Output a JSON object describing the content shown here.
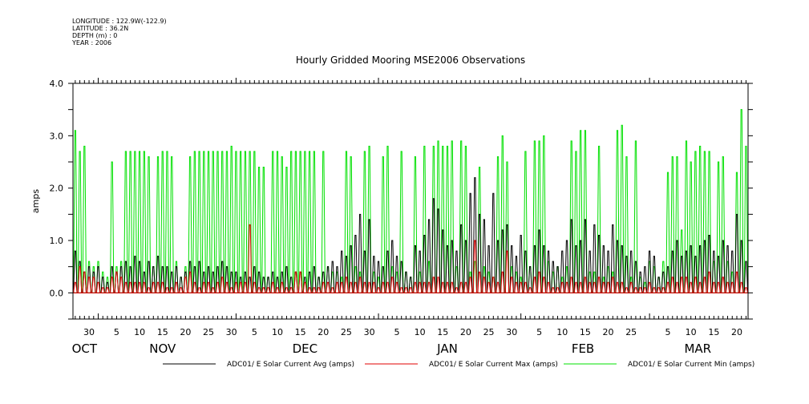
{
  "header": {
    "longitude": "LONGITUDE : 122.9W(-122.9)",
    "latitude": "LATITUDE : 36.2N",
    "depth": "DEPTH (m) : 0",
    "year": "YEAR : 2006"
  },
  "chart_data": {
    "type": "line",
    "title": "Hourly Gridded Mooring MSE2006 Observations",
    "ylabel": "amps",
    "xlabel": "",
    "ylim": [
      -0.5,
      4.0
    ],
    "y_ticks": [
      "0.0",
      "1.0",
      "2.0",
      "3.0",
      "4.0"
    ],
    "x_start": "Oct 27",
    "x_days": 147,
    "x_tick_labels": [
      {
        "label": "30",
        "day": 3
      },
      {
        "label": "5",
        "day": 9
      },
      {
        "label": "10",
        "day": 14
      },
      {
        "label": "15",
        "day": 19
      },
      {
        "label": "20",
        "day": 24
      },
      {
        "label": "25",
        "day": 29
      },
      {
        "label": "30",
        "day": 34
      },
      {
        "label": "5",
        "day": 39
      },
      {
        "label": "10",
        "day": 44
      },
      {
        "label": "15",
        "day": 49
      },
      {
        "label": "20",
        "day": 54
      },
      {
        "label": "25",
        "day": 59
      },
      {
        "label": "30",
        "day": 64
      },
      {
        "label": "5",
        "day": 70
      },
      {
        "label": "10",
        "day": 75
      },
      {
        "label": "15",
        "day": 80
      },
      {
        "label": "20",
        "day": 85
      },
      {
        "label": "25",
        "day": 90
      },
      {
        "label": "30",
        "day": 95
      },
      {
        "label": "5",
        "day": 101
      },
      {
        "label": "10",
        "day": 106
      },
      {
        "label": "15",
        "day": 111
      },
      {
        "label": "20",
        "day": 116
      },
      {
        "label": "25",
        "day": 121
      },
      {
        "label": "5",
        "day": 129
      },
      {
        "label": "10",
        "day": 134
      },
      {
        "label": "15",
        "day": 139
      },
      {
        "label": "20",
        "day": 144
      }
    ],
    "month_labels": [
      {
        "label": "OCT",
        "day": 2
      },
      {
        "label": "NOV",
        "day": 19
      },
      {
        "label": "DEC",
        "day": 50
      },
      {
        "label": "JAN",
        "day": 81
      },
      {
        "label": "FEB",
        "day": 110.5
      },
      {
        "label": "MAR",
        "day": 135.5
      }
    ],
    "month_starts": [
      5,
      35,
      66,
      97,
      125
    ],
    "series": [
      {
        "name": "ADC01/ E Solar Current Min (amps)",
        "color": "#00e000",
        "legend_color": "#00e000",
        "values": [
          3.1,
          2.7,
          2.8,
          0.6,
          0.5,
          0.6,
          0.4,
          0.3,
          2.5,
          0.5,
          0.6,
          2.7,
          2.7,
          2.7,
          2.7,
          2.7,
          2.6,
          0.5,
          2.6,
          2.7,
          2.7,
          2.6,
          0.6,
          0.3,
          0.5,
          2.6,
          2.7,
          2.7,
          2.7,
          2.7,
          2.7,
          2.7,
          2.7,
          2.7,
          2.8,
          2.7,
          2.7,
          2.7,
          2.7,
          2.7,
          2.4,
          2.4,
          0.3,
          2.7,
          2.7,
          2.6,
          2.4,
          2.7,
          2.7,
          2.7,
          2.7,
          2.7,
          2.7,
          0.3,
          2.7,
          0.5,
          0.4,
          0.4,
          0.3,
          2.7,
          2.6,
          0.5,
          0.4,
          2.7,
          2.8,
          0.4,
          0.3,
          2.6,
          2.8,
          0.5,
          0.4,
          2.7,
          0.4,
          0.3,
          2.6,
          0.4,
          2.8,
          0.6,
          2.8,
          2.9,
          2.8,
          2.8,
          2.9,
          0.5,
          2.9,
          2.8,
          0.4,
          0.6,
          2.4,
          0.5,
          0.4,
          0.3,
          2.6,
          3.0,
          2.5,
          0.5,
          0.4,
          0.3,
          2.7,
          0.5,
          2.9,
          2.9,
          3.0,
          0.6,
          0.4,
          0.5,
          0.3,
          0.5,
          2.9,
          2.7,
          3.1,
          3.1,
          0.4,
          0.4,
          2.8,
          0.3,
          0.5,
          0.4,
          3.1,
          3.2,
          2.6,
          0.3,
          2.9,
          0.3,
          0.2,
          0.6,
          0.5,
          0.3,
          0.6,
          2.3,
          2.6,
          2.6,
          1.2,
          2.9,
          2.5,
          2.7,
          2.8,
          2.7,
          2.7,
          0.6,
          2.5,
          2.6,
          0.6,
          0.4,
          2.3,
          3.5,
          2.8
        ]
      },
      {
        "name": "ADC01/ E Solar Current Avg (amps)",
        "color": "#000000",
        "legend_color": "#000000",
        "values": [
          0.8,
          0.6,
          0.4,
          0.5,
          0.4,
          0.5,
          0.3,
          0.2,
          0.5,
          0.4,
          0.5,
          0.6,
          0.5,
          0.7,
          0.6,
          0.4,
          0.6,
          0.5,
          0.7,
          0.5,
          0.5,
          0.4,
          0.5,
          0.3,
          0.4,
          0.6,
          0.5,
          0.6,
          0.4,
          0.5,
          0.4,
          0.5,
          0.6,
          0.5,
          0.4,
          0.4,
          0.3,
          0.4,
          0.3,
          0.5,
          0.4,
          0.3,
          0.3,
          0.4,
          0.3,
          0.4,
          0.5,
          0.3,
          0.4,
          0.4,
          0.3,
          0.4,
          0.5,
          0.3,
          0.4,
          0.5,
          0.6,
          0.5,
          0.8,
          0.7,
          0.9,
          1.1,
          1.5,
          0.8,
          1.4,
          0.7,
          0.6,
          0.5,
          0.8,
          1.0,
          0.7,
          0.6,
          0.4,
          0.3,
          0.9,
          0.8,
          1.1,
          1.4,
          1.8,
          1.6,
          1.2,
          0.9,
          1.0,
          0.8,
          1.3,
          1.0,
          1.9,
          2.2,
          1.5,
          1.4,
          0.9,
          1.9,
          1.0,
          1.2,
          1.3,
          0.9,
          0.7,
          1.1,
          0.8,
          0.5,
          0.9,
          1.2,
          0.9,
          0.8,
          0.6,
          0.5,
          0.8,
          1.0,
          1.4,
          0.9,
          1.0,
          1.4,
          0.8,
          1.3,
          1.1,
          0.9,
          0.8,
          1.3,
          1.0,
          0.9,
          0.7,
          0.8,
          0.6,
          0.4,
          0.5,
          0.8,
          0.7,
          0.3,
          0.4,
          0.5,
          0.8,
          1.0,
          0.7,
          0.8,
          0.9,
          0.7,
          0.9,
          1.0,
          1.1,
          0.8,
          0.7,
          1.0,
          0.9,
          0.8,
          1.5,
          1.0,
          0.6
        ]
      },
      {
        "name": "ADC01/ E Solar Current Max (amps)",
        "color": "#e00000",
        "legend_color": "#e00000",
        "values": [
          0.2,
          0.5,
          0.4,
          0.3,
          0.3,
          0.2,
          0.1,
          0.1,
          0.3,
          0.4,
          0.3,
          0.2,
          0.2,
          0.2,
          0.2,
          0.2,
          0.1,
          0.2,
          0.2,
          0.2,
          0.1,
          0.1,
          0.2,
          0.1,
          0.3,
          0.4,
          0.2,
          0.1,
          0.2,
          0.2,
          0.1,
          0.2,
          0.3,
          0.2,
          0.1,
          0.2,
          0.2,
          0.2,
          1.3,
          0.2,
          0.1,
          0.1,
          0.1,
          0.2,
          0.1,
          0.2,
          0.1,
          0.1,
          0.4,
          0.4,
          0.2,
          0.1,
          0.1,
          0.1,
          0.2,
          0.2,
          0.1,
          0.2,
          0.2,
          0.3,
          0.2,
          0.2,
          0.3,
          0.2,
          0.2,
          0.2,
          0.1,
          0.2,
          0.2,
          0.3,
          0.2,
          0.1,
          0.1,
          0.1,
          0.2,
          0.2,
          0.2,
          0.2,
          0.3,
          0.3,
          0.2,
          0.2,
          0.2,
          0.1,
          0.2,
          0.2,
          0.3,
          1.0,
          0.4,
          0.3,
          0.2,
          0.3,
          0.2,
          0.4,
          0.8,
          0.3,
          0.2,
          0.2,
          0.2,
          0.1,
          0.3,
          0.4,
          0.3,
          0.2,
          0.1,
          0.1,
          0.2,
          0.2,
          0.3,
          0.2,
          0.2,
          0.3,
          0.2,
          0.2,
          0.3,
          0.2,
          0.2,
          0.3,
          0.2,
          0.2,
          0.1,
          0.2,
          0.1,
          0.1,
          0.1,
          0.2,
          0.1,
          0.1,
          0.1,
          0.2,
          0.3,
          0.2,
          0.3,
          0.3,
          0.2,
          0.3,
          0.2,
          0.3,
          0.4,
          0.2,
          0.2,
          0.3,
          0.2,
          0.2,
          0.4,
          0.2,
          0.1
        ]
      }
    ],
    "legend": [
      {
        "label": "ADC01/ E Solar Current Avg (amps)",
        "color": "#000000"
      },
      {
        "label": "ADC01/ E Solar Current Max (amps)",
        "color": "#e00000"
      },
      {
        "label": "ADC01/ E Solar Current Min (amps)",
        "color": "#00e000"
      }
    ],
    "legend_placement": "bottom",
    "grid": false
  }
}
